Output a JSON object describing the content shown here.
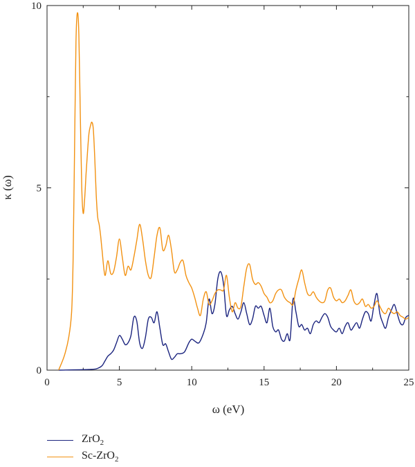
{
  "chart_data": {
    "type": "line",
    "xlabel": "ω (eV)",
    "ylabel": "κ (ω)",
    "xlim": [
      0,
      25
    ],
    "ylim": [
      0,
      10
    ],
    "xticks": [
      0,
      5,
      10,
      15,
      20,
      25
    ],
    "yticks": [
      0,
      5,
      10
    ],
    "grid": false,
    "legend_placement": "bottom-left",
    "series": [
      {
        "name": "ZrO2",
        "name_base": "ZrO",
        "name_sub": "2",
        "color": "#1a237e",
        "x": [
          0.8,
          3.0,
          3.5,
          3.8,
          4.0,
          4.2,
          4.4,
          4.6,
          4.8,
          5.0,
          5.2,
          5.4,
          5.6,
          5.8,
          6.0,
          6.2,
          6.4,
          6.6,
          6.8,
          7.0,
          7.2,
          7.4,
          7.6,
          7.8,
          8.0,
          8.2,
          8.4,
          8.6,
          8.8,
          9.0,
          9.2,
          9.5,
          9.8,
          10.0,
          10.2,
          10.5,
          10.8,
          11.0,
          11.2,
          11.4,
          11.6,
          11.8,
          12.0,
          12.2,
          12.4,
          12.6,
          12.8,
          13.0,
          13.2,
          13.4,
          13.6,
          13.8,
          14.0,
          14.2,
          14.4,
          14.6,
          14.8,
          15.0,
          15.2,
          15.4,
          15.6,
          15.8,
          16.0,
          16.2,
          16.4,
          16.6,
          16.8,
          17.0,
          17.2,
          17.4,
          17.6,
          17.8,
          18.0,
          18.2,
          18.4,
          18.6,
          18.8,
          19.0,
          19.2,
          19.4,
          19.6,
          19.8,
          20.0,
          20.2,
          20.4,
          20.6,
          20.8,
          21.0,
          21.2,
          21.4,
          21.6,
          21.8,
          22.0,
          22.2,
          22.4,
          22.6,
          22.8,
          23.0,
          23.2,
          23.4,
          23.6,
          23.8,
          24.0,
          24.2,
          24.4,
          24.6,
          24.8,
          25.0
        ],
        "y": [
          0.0,
          0.02,
          0.05,
          0.12,
          0.25,
          0.38,
          0.45,
          0.55,
          0.75,
          0.95,
          0.85,
          0.7,
          0.75,
          0.95,
          1.45,
          1.35,
          0.75,
          0.6,
          0.9,
          1.4,
          1.45,
          1.3,
          1.6,
          1.15,
          0.7,
          0.72,
          0.5,
          0.3,
          0.35,
          0.45,
          0.45,
          0.5,
          0.75,
          0.85,
          0.8,
          0.75,
          1.0,
          1.3,
          1.95,
          1.55,
          1.8,
          2.5,
          2.7,
          2.35,
          1.5,
          1.65,
          1.75,
          1.55,
          1.4,
          1.6,
          1.85,
          1.55,
          1.25,
          1.4,
          1.75,
          1.7,
          1.75,
          1.5,
          1.3,
          1.7,
          1.2,
          1.05,
          1.1,
          0.85,
          0.8,
          1.0,
          0.85,
          1.95,
          1.6,
          1.2,
          1.25,
          1.1,
          1.15,
          1.0,
          1.25,
          1.35,
          1.3,
          1.45,
          1.55,
          1.45,
          1.2,
          1.1,
          1.05,
          1.15,
          1.0,
          1.2,
          1.3,
          1.1,
          1.2,
          1.3,
          1.15,
          1.4,
          1.6,
          1.55,
          1.35,
          1.8,
          2.1,
          1.55,
          1.3,
          1.15,
          1.45,
          1.65,
          1.8,
          1.55,
          1.3,
          1.25,
          1.45,
          1.5
        ]
      },
      {
        "name": "Sc-ZrO2",
        "name_base": "Sc-ZrO",
        "name_sub": "2",
        "color": "#f29111",
        "x": [
          0.8,
          1.2,
          1.5,
          1.7,
          1.8,
          1.9,
          2.0,
          2.1,
          2.2,
          2.3,
          2.4,
          2.5,
          2.6,
          2.7,
          2.8,
          2.9,
          3.0,
          3.1,
          3.2,
          3.3,
          3.4,
          3.5,
          3.6,
          3.7,
          3.8,
          4.0,
          4.2,
          4.4,
          4.6,
          4.8,
          5.0,
          5.2,
          5.4,
          5.6,
          5.8,
          6.0,
          6.2,
          6.4,
          6.6,
          6.8,
          7.0,
          7.2,
          7.4,
          7.6,
          7.8,
          8.0,
          8.2,
          8.4,
          8.6,
          8.8,
          9.0,
          9.2,
          9.4,
          9.6,
          9.8,
          10.0,
          10.2,
          10.4,
          10.6,
          10.8,
          11.0,
          11.2,
          11.4,
          11.6,
          11.8,
          12.0,
          12.2,
          12.4,
          12.6,
          12.8,
          13.0,
          13.2,
          13.4,
          13.6,
          13.8,
          14.0,
          14.2,
          14.4,
          14.6,
          14.8,
          15.0,
          15.2,
          15.4,
          15.6,
          15.8,
          16.0,
          16.2,
          16.4,
          16.6,
          16.8,
          17.0,
          17.2,
          17.4,
          17.6,
          17.8,
          18.0,
          18.2,
          18.4,
          18.6,
          18.8,
          19.0,
          19.2,
          19.4,
          19.6,
          19.8,
          20.0,
          20.2,
          20.4,
          20.6,
          20.8,
          21.0,
          21.2,
          21.4,
          21.6,
          21.8,
          22.0,
          22.2,
          22.4,
          22.6,
          22.8,
          23.0,
          23.2,
          23.4,
          23.6,
          23.8,
          24.0,
          24.2,
          24.4,
          24.6,
          24.8,
          25.0
        ],
        "y": [
          0.0,
          0.4,
          0.9,
          1.6,
          3.0,
          6.0,
          9.0,
          9.8,
          9.2,
          7.0,
          5.0,
          4.3,
          4.7,
          5.4,
          6.0,
          6.5,
          6.7,
          6.8,
          6.6,
          5.8,
          4.8,
          4.2,
          4.0,
          3.7,
          3.3,
          2.6,
          3.0,
          2.65,
          2.7,
          3.1,
          3.6,
          3.1,
          2.6,
          2.85,
          2.75,
          3.1,
          3.55,
          4.0,
          3.6,
          3.0,
          2.6,
          2.55,
          3.1,
          3.7,
          3.9,
          3.3,
          3.4,
          3.7,
          3.3,
          2.7,
          2.75,
          2.95,
          3.0,
          2.6,
          2.4,
          2.25,
          2.0,
          1.7,
          1.5,
          1.95,
          2.15,
          1.8,
          1.9,
          2.1,
          2.2,
          2.2,
          2.2,
          2.6,
          2.0,
          1.6,
          1.85,
          1.7,
          1.75,
          2.3,
          2.8,
          2.9,
          2.5,
          2.35,
          2.4,
          2.3,
          2.1,
          2.0,
          1.85,
          1.9,
          2.1,
          2.2,
          2.2,
          2.0,
          1.9,
          1.85,
          1.8,
          2.2,
          2.5,
          2.75,
          2.4,
          2.1,
          2.05,
          2.15,
          2.0,
          1.9,
          1.85,
          1.9,
          2.2,
          2.25,
          2.0,
          1.9,
          1.95,
          1.85,
          1.9,
          2.05,
          2.2,
          1.9,
          1.8,
          1.85,
          1.95,
          1.75,
          1.8,
          1.7,
          1.75,
          1.9,
          1.75,
          1.6,
          1.55,
          1.7,
          1.6,
          1.55,
          1.6,
          1.5,
          1.45,
          1.4,
          1.45
        ]
      }
    ]
  }
}
